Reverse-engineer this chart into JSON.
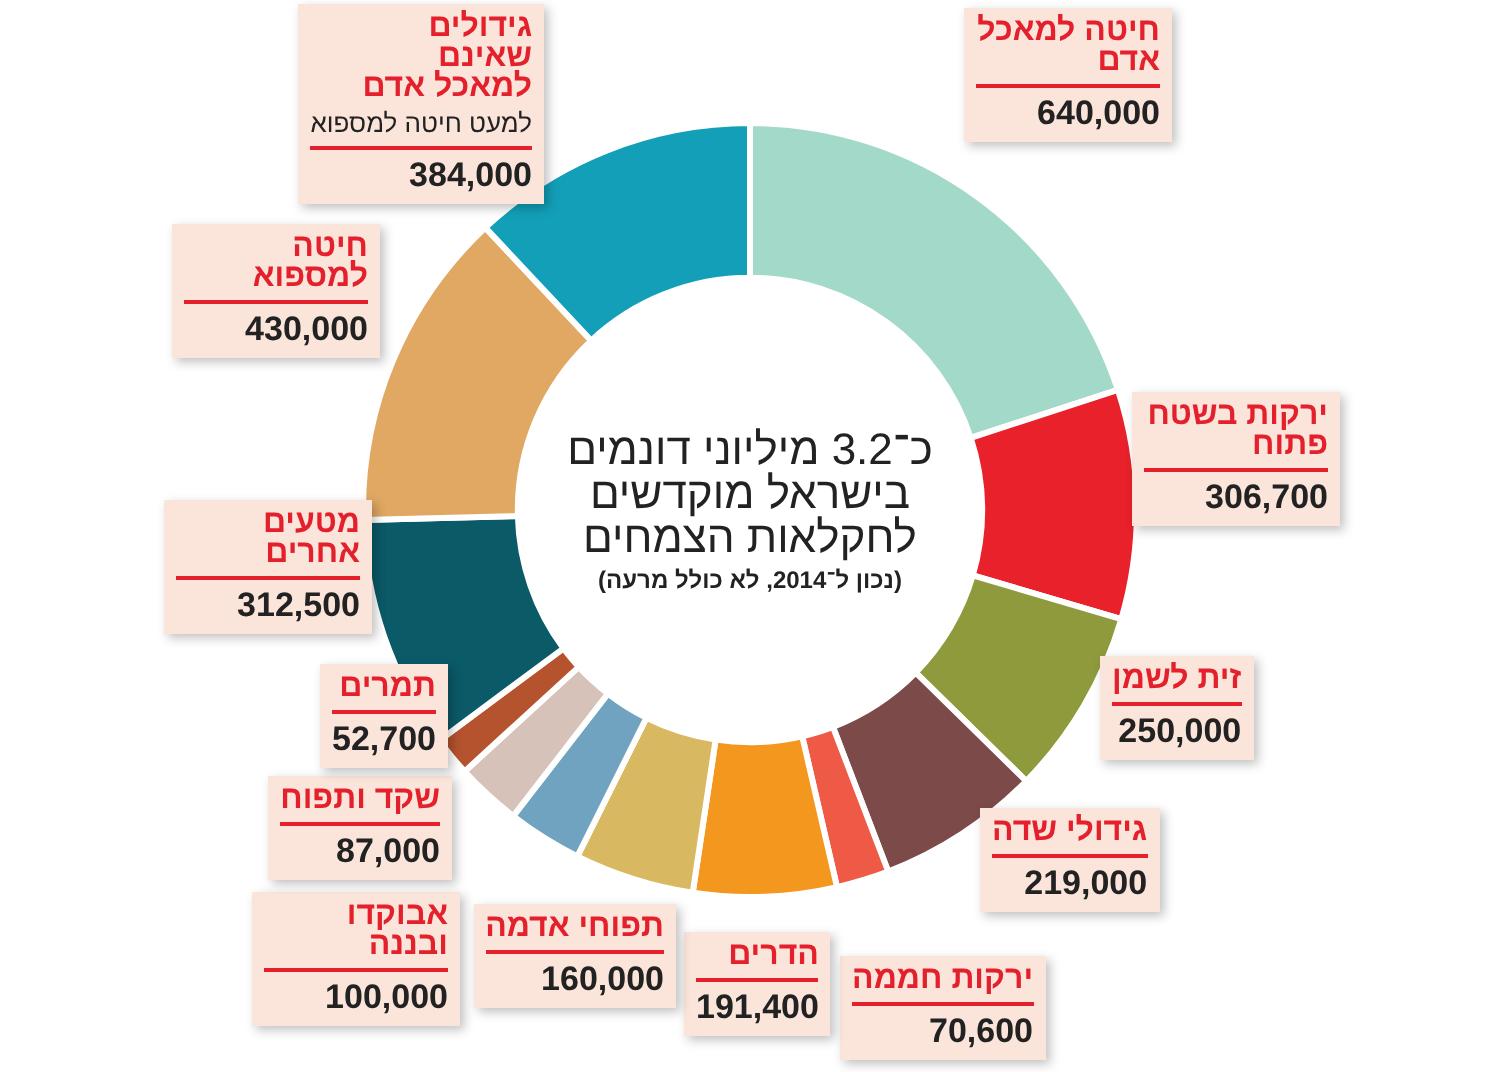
{
  "chart_data": {
    "type": "donut",
    "title": "כ־3.2 מיליוני דונמים בישראל מוקדשים לחקלאות הצמחים",
    "subtitle": "(נכון ל־2014, לא כולל מרעה)",
    "categories": [
      "חיטה למאכל אדם",
      "ירקות בשטח פתוח",
      "זית לשמן",
      "גידולי שדה",
      "ירקות חממה",
      "הדרים",
      "תפוחי אדמה",
      "אבוקדו ובננה",
      "שקד ותפוח",
      "תמרים",
      "מטעים אחרים",
      "חיטה למספוא",
      "גידולים שאינם למאכל אדם"
    ],
    "values": [
      640000,
      306700,
      250000,
      219000,
      70600,
      191400,
      160000,
      100000,
      87000,
      52700,
      312500,
      430000,
      384000
    ],
    "value_labels": [
      "640,000",
      "306,700",
      "250,000",
      "219,000",
      "70,600",
      "191,400",
      "160,000",
      "100,000",
      "87,000",
      "52,700",
      "312,500",
      "430,000",
      "384,000"
    ],
    "colors": [
      "#a3d9c9",
      "#e8212a",
      "#8e9a3c",
      "#7d4a4a",
      "#ef5a47",
      "#f3971e",
      "#d8b860",
      "#6fa3c0",
      "#d7c2ba",
      "#b5532e",
      "#0b5a68",
      "#e0a862",
      "#139fb8"
    ],
    "annotations": [
      {
        "text": "למעט חיטה למספוא",
        "x": "גידולים שאינם למאכל אדם"
      }
    ],
    "legend": false
  }
}
